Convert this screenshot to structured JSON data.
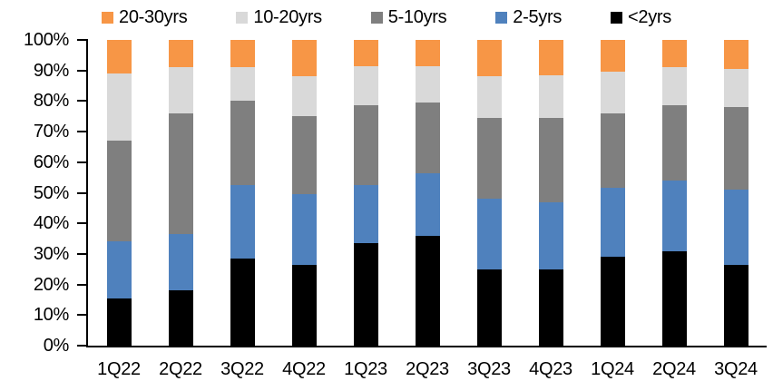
{
  "chart_data": {
    "type": "bar",
    "subtype": "stacked-100-percent-column",
    "title": "",
    "xlabel": "",
    "ylabel": "",
    "ylim": [
      0,
      100
    ],
    "grid": false,
    "legend_position": "top",
    "axis_color": "#000000",
    "background_color": "#ffffff",
    "y_tick_labels": [
      "0%",
      "10%",
      "20%",
      "30%",
      "40%",
      "50%",
      "60%",
      "70%",
      "80%",
      "90%",
      "100%"
    ],
    "categories": [
      "1Q22",
      "2Q22",
      "3Q22",
      "4Q22",
      "1Q23",
      "2Q23",
      "3Q23",
      "4Q23",
      "1Q24",
      "2Q24",
      "3Q24"
    ],
    "stack_order_note": "series listed bottom-to-top of stack",
    "series": [
      {
        "name": "<2yrs",
        "color": "#000000",
        "values": [
          15.5,
          18.0,
          28.5,
          26.5,
          33.5,
          36.0,
          25.0,
          25.0,
          29.0,
          31.0,
          26.5
        ]
      },
      {
        "name": "2-5yrs",
        "color": "#4F81BD",
        "values": [
          18.5,
          18.5,
          24.0,
          23.0,
          19.0,
          20.5,
          23.0,
          22.0,
          22.5,
          23.0,
          24.5
        ]
      },
      {
        "name": "5-10yrs",
        "color": "#7F7F7F",
        "values": [
          33.0,
          39.5,
          27.5,
          25.5,
          26.0,
          23.0,
          26.5,
          27.5,
          24.5,
          24.5,
          27.0
        ]
      },
      {
        "name": "10-20yrs",
        "color": "#D9D9D9",
        "values": [
          22.0,
          15.0,
          11.0,
          13.0,
          13.0,
          12.0,
          13.5,
          14.0,
          13.5,
          12.5,
          12.5
        ]
      },
      {
        "name": "20-30yrs",
        "color": "#F79646",
        "values": [
          11.0,
          9.0,
          9.0,
          12.0,
          8.5,
          8.5,
          12.0,
          11.5,
          10.5,
          9.0,
          9.5
        ]
      }
    ],
    "legend_order": [
      "20-30yrs",
      "10-20yrs",
      "5-10yrs",
      "2-5yrs",
      "<2yrs"
    ]
  }
}
